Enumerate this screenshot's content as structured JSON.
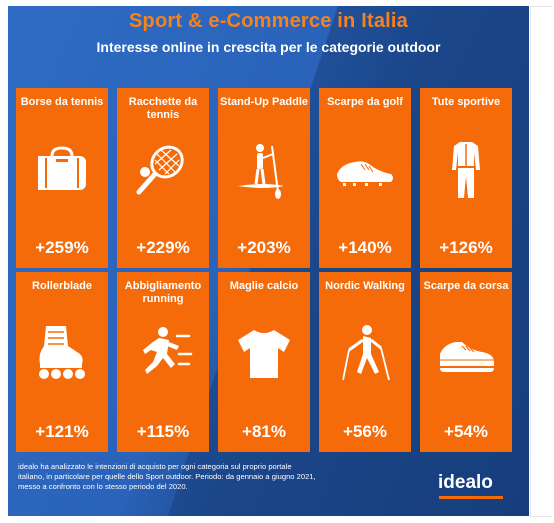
{
  "header": {
    "title": "Sport & e-Commerce in Italia",
    "subtitle": "Interesse online in crescita per le categorie outdoor"
  },
  "colors": {
    "accent": "#f56b0a",
    "title": "#f5821f",
    "background": "#2a63b9"
  },
  "cards": [
    {
      "label": "Borse da tennis",
      "value": "+259%",
      "icon": "duffel-bag-icon"
    },
    {
      "label": "Racchette da tennis",
      "value": "+229%",
      "icon": "tennis-racket-icon"
    },
    {
      "label": "Stand-Up Paddle",
      "value": "+203%",
      "icon": "paddle-board-icon"
    },
    {
      "label": "Scarpe da golf",
      "value": "+140%",
      "icon": "golf-shoe-icon"
    },
    {
      "label": "Tute sportive",
      "value": "+126%",
      "icon": "tracksuit-icon"
    },
    {
      "label": "Rollerblade",
      "value": "+121%",
      "icon": "inline-skate-icon"
    },
    {
      "label": "Abbigliamento running",
      "value": "+115%",
      "icon": "runner-icon"
    },
    {
      "label": "Maglie calcio",
      "value": "+81%",
      "icon": "tshirt-icon"
    },
    {
      "label": "Nordic Walking",
      "value": "+56%",
      "icon": "nordic-walker-icon"
    },
    {
      "label": "Scarpe da corsa",
      "value": "+54%",
      "icon": "running-shoe-icon"
    }
  ],
  "footnote": "idealo ha analizzato le intenzioni di acquisto per ogni categoria sul proprio portale italiano, in particolare per quelle dello Sport outdoor. Periodo: da gennaio a giugno 2021, messo a confronto con lo stesso periodo del 2020.",
  "logo": "idealo"
}
